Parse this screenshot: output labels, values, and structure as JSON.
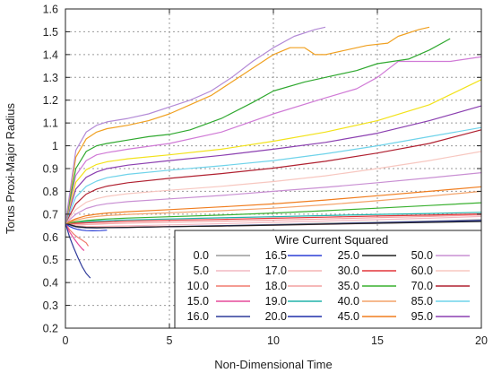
{
  "chart_data": {
    "type": "line",
    "title": "",
    "xlabel": "Non-Dimensional Time",
    "ylabel": "Torus Proxi-Major Radius",
    "xlim": [
      0,
      20
    ],
    "ylim": [
      0.2,
      1.6
    ],
    "xticks": [
      "0",
      "5",
      "10",
      "15",
      "20"
    ],
    "yticks": [
      "0.2",
      "0.3",
      "0.4",
      "0.5",
      "0.6",
      "0.7",
      "0.8",
      "0.9",
      "1",
      "1.1",
      "1.2",
      "1.3",
      "1.4",
      "1.5",
      "1.6"
    ],
    "grid": true,
    "legend_title": "Wire Current Squared",
    "legend_position": "bottom-right",
    "series": [
      {
        "name": "0.0",
        "color": "#9a9a9a",
        "x": [
          0,
          0.3,
          0.6,
          1.0,
          1.5,
          2.0,
          3.0,
          5.0,
          7.5,
          10.0,
          12.5,
          15.0,
          17.5,
          20.0
        ],
        "y": [
          0.66,
          0.648,
          0.642,
          0.64,
          0.64,
          0.641,
          0.643,
          0.646,
          0.65,
          0.655,
          0.66,
          0.665,
          0.67,
          0.676
        ]
      },
      {
        "name": "5.0",
        "color": "#f2b8c2",
        "x": [
          0,
          0.3,
          0.6,
          1.0,
          1.5,
          2.0,
          3.0,
          5.0,
          7.5,
          10.0,
          12.5,
          15.0,
          17.5,
          20.0
        ],
        "y": [
          0.66,
          0.652,
          0.648,
          0.646,
          0.646,
          0.647,
          0.649,
          0.653,
          0.658,
          0.664,
          0.67,
          0.676,
          0.682,
          0.69
        ]
      },
      {
        "name": "10.0",
        "color": "#f07a6e",
        "x": [
          0,
          0.2,
          0.4,
          0.6,
          0.8,
          1.0,
          1.1
        ],
        "y": [
          0.66,
          0.632,
          0.612,
          0.598,
          0.586,
          0.574,
          0.56
        ]
      },
      {
        "name": "15.0",
        "color": "#e64a9a",
        "x": [
          0,
          0.2,
          0.4,
          0.6,
          0.8,
          0.9
        ],
        "y": [
          0.66,
          0.622,
          0.595,
          0.57,
          0.548,
          0.54
        ]
      },
      {
        "name": "16.0",
        "color": "#2e3a9a",
        "x": [
          0,
          0.2,
          0.4,
          0.6,
          0.8,
          1.0,
          1.2
        ],
        "y": [
          0.66,
          0.6,
          0.552,
          0.51,
          0.47,
          0.44,
          0.42
        ]
      },
      {
        "name": "16.5",
        "color": "#2b3fd6",
        "x": [
          0,
          0.2,
          0.4,
          0.6,
          0.8,
          1.0,
          1.3,
          1.7,
          2.0
        ],
        "y": [
          0.66,
          0.646,
          0.638,
          0.633,
          0.63,
          0.628,
          0.627,
          0.628,
          0.63
        ]
      },
      {
        "name": "17.0",
        "color": "#f6b3b3",
        "x": [
          0,
          0.5,
          1.0,
          1.5,
          2.0,
          3.0,
          5.0,
          7.5,
          10.0,
          12.5,
          15.0,
          17.5,
          20.0
        ],
        "y": [
          0.66,
          0.65,
          0.646,
          0.645,
          0.645,
          0.645,
          0.646,
          0.648,
          0.651,
          0.655,
          0.66,
          0.665,
          0.67
        ]
      },
      {
        "name": "18.0",
        "color": "#f3a0a0",
        "x": [
          0,
          0.5,
          1.0,
          1.5,
          2.0,
          3.0,
          5.0,
          7.5,
          10.0,
          12.5,
          15.0,
          17.5,
          20.0
        ],
        "y": [
          0.66,
          0.656,
          0.655,
          0.656,
          0.658,
          0.661,
          0.665,
          0.669,
          0.674,
          0.679,
          0.685,
          0.69,
          0.697
        ]
      },
      {
        "name": "19.0",
        "color": "#20b2aa",
        "x": [
          0,
          0.5,
          1.0,
          1.5,
          2.0,
          3.0,
          5.0,
          7.5,
          10.0,
          12.5,
          15.0,
          17.5,
          20.0
        ],
        "y": [
          0.66,
          0.665,
          0.668,
          0.67,
          0.672,
          0.675,
          0.679,
          0.684,
          0.689,
          0.694,
          0.699,
          0.703,
          0.708
        ]
      },
      {
        "name": "20.0",
        "color": "#1f2ea8",
        "x": [
          0,
          0.5,
          1.0,
          1.5,
          2.0,
          3.0,
          5.0,
          7.5,
          10.0,
          12.5,
          15.0,
          17.5,
          20.0
        ],
        "y": [
          0.66,
          0.645,
          0.641,
          0.64,
          0.641,
          0.642,
          0.645,
          0.649,
          0.653,
          0.657,
          0.662,
          0.667,
          0.672
        ]
      },
      {
        "name": "25.0",
        "color": "#222222",
        "x": [
          0,
          0.5,
          1.0,
          1.5,
          2.0,
          3.0,
          5.0,
          7.5,
          10.0,
          12.5,
          15.0,
          17.5,
          20.0
        ],
        "y": [
          0.66,
          0.646,
          0.642,
          0.641,
          0.641,
          0.642,
          0.645,
          0.648,
          0.652,
          0.656,
          0.66,
          0.664,
          0.668
        ]
      },
      {
        "name": "30.0",
        "color": "#e3353a",
        "x": [
          0,
          0.5,
          1.0,
          1.5,
          2.0,
          3.0,
          5.0,
          7.5,
          10.0,
          12.5,
          15.0,
          17.5,
          20.0
        ],
        "y": [
          0.66,
          0.66,
          0.662,
          0.664,
          0.666,
          0.669,
          0.673,
          0.677,
          0.682,
          0.687,
          0.692,
          0.696,
          0.701
        ]
      },
      {
        "name": "35.0",
        "color": "#39b02f",
        "x": [
          0,
          0.5,
          1.0,
          1.5,
          2.0,
          3.0,
          5.0,
          7.5,
          10.0,
          12.5,
          15.0,
          17.5,
          20.0
        ],
        "y": [
          0.66,
          0.666,
          0.672,
          0.676,
          0.679,
          0.683,
          0.689,
          0.696,
          0.705,
          0.715,
          0.726,
          0.738,
          0.75
        ]
      },
      {
        "name": "40.0",
        "color": "#f3a268",
        "x": [
          0,
          0.5,
          1.0,
          1.5,
          2.0,
          3.0,
          5.0,
          7.5,
          10.0,
          12.5,
          15.0,
          17.5,
          20.0
        ],
        "y": [
          0.66,
          0.674,
          0.684,
          0.69,
          0.694,
          0.699,
          0.706,
          0.715,
          0.726,
          0.741,
          0.759,
          0.779,
          0.8
        ]
      },
      {
        "name": "45.0",
        "color": "#f07d1f",
        "x": [
          0,
          0.5,
          1.0,
          1.5,
          2.0,
          3.0,
          5.0,
          7.5,
          10.0,
          12.5,
          15.0,
          17.5,
          20.0
        ],
        "y": [
          0.66,
          0.68,
          0.693,
          0.7,
          0.705,
          0.711,
          0.72,
          0.732,
          0.745,
          0.762,
          0.781,
          0.8,
          0.82
        ]
      },
      {
        "name": "50.0",
        "color": "#c98fd3",
        "x": [
          0,
          0.5,
          1.0,
          1.5,
          2.0,
          3.0,
          5.0,
          7.5,
          10.0,
          12.5,
          15.0,
          17.5,
          20.0
        ],
        "y": [
          0.66,
          0.7,
          0.725,
          0.738,
          0.746,
          0.755,
          0.767,
          0.782,
          0.8,
          0.818,
          0.838,
          0.859,
          0.882
        ]
      },
      {
        "name": "60.0",
        "color": "#f7c7c0",
        "x": [
          0,
          0.5,
          1.0,
          1.5,
          2.0,
          3.0,
          5.0,
          7.5,
          10.0,
          12.5,
          15.0,
          17.5,
          20.0
        ],
        "y": [
          0.66,
          0.72,
          0.752,
          0.768,
          0.778,
          0.79,
          0.805,
          0.822,
          0.843,
          0.868,
          0.9,
          0.935,
          0.975
        ]
      },
      {
        "name": "70.0",
        "color": "#b02030",
        "x": [
          0,
          0.5,
          1.0,
          1.5,
          2.0,
          3.0,
          5.0,
          7.5,
          10.0,
          12.5,
          15.0,
          17.5,
          20.0
        ],
        "y": [
          0.66,
          0.745,
          0.788,
          0.81,
          0.823,
          0.838,
          0.857,
          0.878,
          0.902,
          0.932,
          0.968,
          1.01,
          1.07
        ]
      },
      {
        "name": "85.0",
        "color": "#6fd3ea",
        "x": [
          0,
          0.5,
          1.0,
          1.5,
          2.0,
          3.0,
          5.0,
          7.5,
          10.0,
          12.5,
          15.0,
          17.5,
          20.0
        ],
        "y": [
          0.66,
          0.775,
          0.822,
          0.845,
          0.86,
          0.875,
          0.893,
          0.912,
          0.935,
          0.965,
          1.0,
          1.04,
          1.08
        ]
      },
      {
        "name": "95.0",
        "color": "#8b3fb0",
        "x": [
          0,
          0.5,
          1.0,
          1.5,
          2.0,
          3.0,
          5.0,
          7.5,
          10.0,
          12.5,
          15.0,
          17.5,
          20.0
        ],
        "y": [
          0.66,
          0.81,
          0.862,
          0.885,
          0.9,
          0.915,
          0.935,
          0.958,
          0.985,
          1.015,
          1.055,
          1.11,
          1.175
        ]
      },
      {
        "name": "",
        "color": "#f2e21a",
        "x": [
          0,
          0.5,
          1.0,
          1.5,
          2.0,
          3.0,
          5.0,
          7.5,
          10.0,
          12.5,
          15.0,
          17.5,
          20.0
        ],
        "y": [
          0.66,
          0.84,
          0.895,
          0.918,
          0.93,
          0.943,
          0.96,
          0.985,
          1.02,
          1.06,
          1.11,
          1.18,
          1.29
        ]
      },
      {
        "name": "",
        "color": "#d07ad6",
        "x": [
          0,
          0.5,
          1.0,
          1.5,
          2.0,
          3.0,
          5.0,
          7.5,
          10.0,
          12.5,
          14.0,
          15.0,
          16.0,
          17.5,
          18.5,
          20.0
        ],
        "y": [
          0.66,
          0.87,
          0.935,
          0.96,
          0.97,
          0.985,
          1.01,
          1.06,
          1.14,
          1.21,
          1.25,
          1.3,
          1.37,
          1.37,
          1.37,
          1.39
        ]
      },
      {
        "name": "",
        "color": "#2fa82f",
        "x": [
          0,
          0.5,
          1.0,
          1.5,
          2.0,
          3.0,
          4.0,
          5.0,
          6.0,
          7.5,
          9.0,
          10.0,
          11.5,
          12.5,
          14.0,
          15.0,
          16.5,
          17.5,
          18.5
        ],
        "y": [
          0.66,
          0.9,
          0.975,
          1.0,
          1.01,
          1.025,
          1.04,
          1.05,
          1.07,
          1.12,
          1.19,
          1.24,
          1.28,
          1.3,
          1.33,
          1.36,
          1.38,
          1.42,
          1.47
        ]
      },
      {
        "name": "",
        "color": "#f0a020",
        "x": [
          0,
          0.5,
          1.0,
          1.5,
          2.0,
          3.0,
          4.0,
          5.0,
          6.0,
          7.0,
          8.0,
          9.0,
          10.0,
          10.8,
          11.5,
          12.0,
          12.5,
          13.5,
          14.5,
          15.5,
          16.0,
          17.0,
          17.5
        ],
        "y": [
          0.66,
          0.95,
          1.03,
          1.06,
          1.075,
          1.09,
          1.11,
          1.14,
          1.18,
          1.22,
          1.28,
          1.34,
          1.4,
          1.43,
          1.43,
          1.4,
          1.4,
          1.42,
          1.44,
          1.45,
          1.48,
          1.51,
          1.52
        ]
      },
      {
        "name": "",
        "color": "#b38ad6",
        "x": [
          0,
          0.5,
          1.0,
          1.5,
          2.0,
          3.0,
          4.0,
          5.0,
          6.0,
          7.0,
          8.0,
          9.0,
          10.0,
          11.0,
          12.0,
          12.5
        ],
        "y": [
          0.66,
          0.98,
          1.06,
          1.09,
          1.105,
          1.12,
          1.14,
          1.17,
          1.2,
          1.24,
          1.3,
          1.37,
          1.43,
          1.48,
          1.51,
          1.52
        ]
      }
    ]
  }
}
